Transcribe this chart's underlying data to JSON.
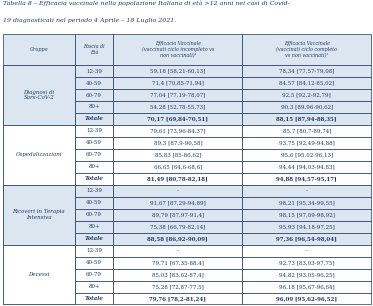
{
  "title_line1": "Tabella 8 – Efficacia vaccinale nella popolazione Italiana di età >12 anni nei casi di Covid-",
  "title_line2": "19 diagnosticati nel periodo 4 Aprile – 18 Luglio 2021.",
  "col_headers": [
    "Gruppo",
    "Fascia di\nEtà",
    "Efficacia Vaccinale\n(vaccinati ciclo incompleto vs\nnon vaccinati)¹",
    "Efficacia Vaccinale\n(vaccinati ciclo completo\nvs non vaccinati)¹"
  ],
  "groups": [
    {
      "name": "Diagnosi di\nSars-CoV-2",
      "rows": [
        [
          "12-39",
          "59,18 [58,21-60,13]",
          "78,34 [77,57-79,08]"
        ],
        [
          "40-59",
          "71,4 [70,85-71,94]",
          "84,57 [84,12-85,02]"
        ],
        [
          "60-79",
          "77,04 [77,19-78,07]",
          "92,5 [92,2-92,79]"
        ],
        [
          "80+",
          "54,28 [52,78-55,73]",
          "90,3 [89,96-90,62]"
        ],
        [
          "Totale",
          "70,17 [69,84-70,51]",
          "88,15 [87,94-88,35]"
        ]
      ],
      "bg": "#dce6f1"
    },
    {
      "name": "Ospedalizzazioni",
      "rows": [
        [
          "12-39",
          "79,61 [73,96-84,37]",
          "85,7 [80,7-89,74]"
        ],
        [
          "40-59",
          "89,3 [87,9-90,58]",
          "93,75 [92,49-94,88]"
        ],
        [
          "60-79",
          "85,83 [85-86,62]",
          "95,6 [95,02-96,13]"
        ],
        [
          "80+",
          "66,65 [64,6-68,6]",
          "94,44 [94,03-94,83]"
        ],
        [
          "Totale",
          "81,49 [80,78-82,18]",
          "94,88 [94,57-95,17]"
        ]
      ],
      "bg": "#ffffff"
    },
    {
      "name": "Ricoveri in Terapia\nIntensiva",
      "rows": [
        [
          "12-39",
          "-",
          "-"
        ],
        [
          "40-59",
          "91,67 [87,29-94,89]",
          "98,21 [95,34-99,55]"
        ],
        [
          "60-79",
          "89,79 [87,97-91,4]",
          "98,15 [97,09-98,92]"
        ],
        [
          "80+",
          "75,38 [66,79-82,14]",
          "95,93 [94,18-97,25]"
        ],
        [
          "Totale",
          "88,58 [86,92-90,09]",
          "97,36 [96,54-98,04]"
        ]
      ],
      "bg": "#dce6f1"
    },
    {
      "name": "Decessi",
      "rows": [
        [
          "12-39",
          "-",
          "-"
        ],
        [
          "40-59",
          "79,71 [67,35-88,4]",
          "92,73 [83,03-97,75]"
        ],
        [
          "60-79",
          "85,03 [83,62-87,4]",
          "94,82 [93,05-96,25]"
        ],
        [
          "80+",
          "75,28 [72,87-77,5]",
          "96,18 [95,67-96,64]"
        ],
        [
          "Totale",
          "79,76 [78,2-81,24]",
          "96,09 [95,62-96,52]"
        ]
      ],
      "bg": "#ffffff"
    }
  ],
  "header_bg": "#dce6f1",
  "bg_white": "#ffffff",
  "text_color": "#1f3864",
  "border_color": "#1f3864",
  "title_color": "#1f3864"
}
